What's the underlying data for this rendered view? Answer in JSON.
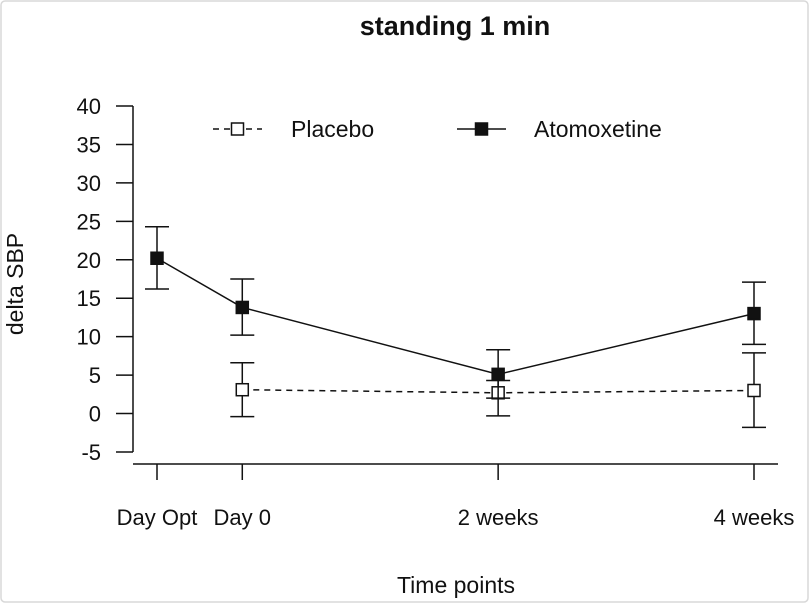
{
  "chart_data": {
    "type": "line",
    "title": "standing 1 min",
    "xlabel": "Time points",
    "ylabel": "delta SBP",
    "ylim": [
      -5,
      40
    ],
    "yticks": [
      -5,
      0,
      5,
      10,
      15,
      20,
      25,
      30,
      35,
      40
    ],
    "grid": false,
    "legend_position": "top",
    "x_positions": [
      0,
      1,
      4,
      7
    ],
    "categories": [
      "Day Opt",
      "Day 0",
      "2 weeks",
      "4 weeks"
    ],
    "series": [
      {
        "name": "Placebo",
        "style": "dashed",
        "marker": "open-square",
        "color": "#111111",
        "points": [
          {
            "x": 1,
            "y": 3.1,
            "lower": -0.4,
            "upper": 6.6
          },
          {
            "x": 4,
            "y": 2.7,
            "lower": -0.3,
            "upper": 4.3
          },
          {
            "x": 7,
            "y": 3.0,
            "lower": -1.8,
            "upper": 7.9
          }
        ]
      },
      {
        "name": "Atomoxetine",
        "style": "solid",
        "marker": "filled-square",
        "color": "#111111",
        "points": [
          {
            "x": 0,
            "y": 20.2,
            "lower": 16.2,
            "upper": 24.3
          },
          {
            "x": 1,
            "y": 13.8,
            "lower": 10.2,
            "upper": 17.5
          },
          {
            "x": 4,
            "y": 5.1,
            "lower": 2.0,
            "upper": 8.3
          },
          {
            "x": 7,
            "y": 13.0,
            "lower": 9.0,
            "upper": 17.1
          }
        ]
      }
    ]
  }
}
